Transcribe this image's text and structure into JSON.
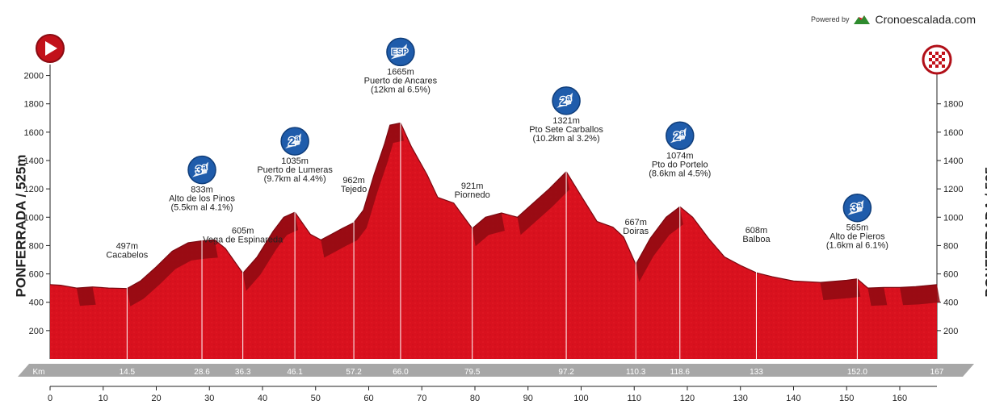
{
  "powered_by": "Powered by",
  "brand": "Cronoescalada.com",
  "side_label": "PONFERRADA  /  525m",
  "km_label": "Km",
  "colors": {
    "profile": "#d9111e",
    "profile_dark": "#8e0a12",
    "band": "#a7a7a7",
    "icon_blue": "#1f5cab"
  },
  "icons": {
    "start": "play-icon",
    "finish": "checkered-flag-icon"
  },
  "chart_data": {
    "type": "area",
    "x": [
      0,
      2,
      5,
      8,
      11,
      14.5,
      17,
      20,
      23,
      26,
      28.6,
      31,
      33,
      36.3,
      39,
      42,
      44,
      46.1,
      49,
      51,
      53,
      55,
      57.2,
      59,
      61,
      63,
      64,
      66,
      68,
      71,
      73,
      76,
      79.5,
      82,
      85,
      88,
      91,
      94,
      97.2,
      100,
      103,
      106,
      108,
      110.3,
      113,
      116,
      118.6,
      121,
      124,
      127,
      130,
      133,
      136,
      140,
      145,
      150,
      152,
      154,
      157,
      160,
      163,
      167
    ],
    "y": [
      525,
      520,
      500,
      508,
      500,
      497,
      550,
      650,
      760,
      820,
      833,
      840,
      780,
      605,
      720,
      900,
      1000,
      1035,
      880,
      840,
      880,
      920,
      962,
      1050,
      1300,
      1520,
      1650,
      1665,
      1500,
      1300,
      1140,
      1100,
      921,
      1000,
      1030,
      1000,
      1100,
      1200,
      1321,
      1150,
      970,
      930,
      860,
      667,
      850,
      1000,
      1074,
      1000,
      850,
      720,
      660,
      608,
      580,
      550,
      540,
      555,
      565,
      500,
      505,
      505,
      510,
      525
    ],
    "xlim": [
      0,
      167
    ],
    "ylim": [
      0,
      2100
    ],
    "xticks": [
      0,
      10,
      20,
      30,
      40,
      50,
      60,
      70,
      80,
      90,
      100,
      110,
      120,
      130,
      140,
      150,
      160
    ],
    "yticks_left": [
      200,
      400,
      600,
      800,
      1000,
      1200,
      1400,
      1600,
      1800,
      2000
    ],
    "yticks_right": [
      200,
      400,
      600,
      800,
      1000,
      1200,
      1400,
      1600,
      1800
    ],
    "band_km": [
      "14.5",
      "28.6",
      "36.3",
      "46.1",
      "57.2",
      "66.0",
      "79.5",
      "97.2",
      "110.3",
      "118.6",
      "133",
      "152.0",
      "167"
    ],
    "annotations": [
      {
        "km": 14.5,
        "lines": [
          "497m",
          "Cacabelos"
        ],
        "icon": ""
      },
      {
        "km": 28.6,
        "lines": [
          "833m",
          "Alto de los Pinos",
          "(5.5km al 4.1%)"
        ],
        "icon": "3ª"
      },
      {
        "km": 36.3,
        "lines": [
          "605m",
          "Vega de Espinareda"
        ],
        "icon": ""
      },
      {
        "km": 46.1,
        "lines": [
          "1035m",
          "Puerto de Lumeras",
          "(9.7km al 4.4%)"
        ],
        "icon": "2ª"
      },
      {
        "km": 57.2,
        "lines": [
          "962m",
          "Tejedo"
        ],
        "icon": ""
      },
      {
        "km": 66.0,
        "lines": [
          "1665m",
          "Puerto de Ancares",
          "(12km al 6.5%)"
        ],
        "icon": "ESP"
      },
      {
        "km": 79.5,
        "lines": [
          "921m",
          "Piornedo"
        ],
        "icon": ""
      },
      {
        "km": 97.2,
        "lines": [
          "1321m",
          "Pto Sete Carballos",
          "(10.2km al 3.2%)"
        ],
        "icon": "2ª"
      },
      {
        "km": 110.3,
        "lines": [
          "667m",
          "Doiras"
        ],
        "icon": ""
      },
      {
        "km": 118.6,
        "lines": [
          "1074m",
          "Pto do Portelo",
          "(8.6km al 4.5%)"
        ],
        "icon": "2ª"
      },
      {
        "km": 133,
        "lines": [
          "608m",
          "Balboa"
        ],
        "icon": ""
      },
      {
        "km": 152.0,
        "lines": [
          "565m",
          "Alto de Pieros",
          "(1.6km al 6.1%)"
        ],
        "icon": "3ª"
      }
    ]
  }
}
